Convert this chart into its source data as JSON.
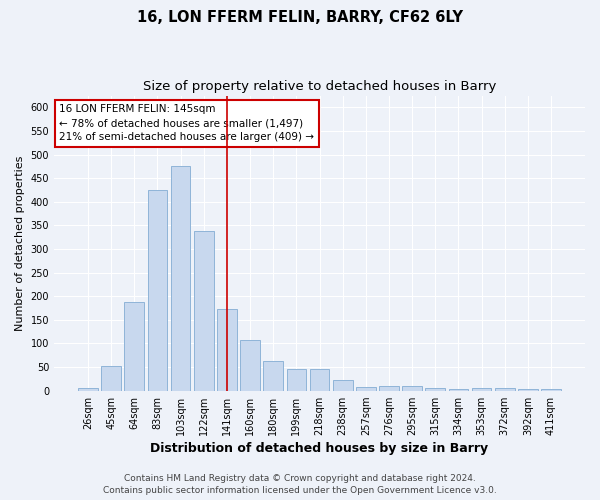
{
  "title": "16, LON FFERM FELIN, BARRY, CF62 6LY",
  "subtitle": "Size of property relative to detached houses in Barry",
  "xlabel": "Distribution of detached houses by size in Barry",
  "ylabel": "Number of detached properties",
  "categories": [
    "26sqm",
    "45sqm",
    "64sqm",
    "83sqm",
    "103sqm",
    "122sqm",
    "141sqm",
    "160sqm",
    "180sqm",
    "199sqm",
    "218sqm",
    "238sqm",
    "257sqm",
    "276sqm",
    "295sqm",
    "315sqm",
    "334sqm",
    "353sqm",
    "372sqm",
    "392sqm",
    "411sqm"
  ],
  "values": [
    5,
    52,
    187,
    425,
    475,
    338,
    173,
    107,
    62,
    47,
    46,
    23,
    8,
    10,
    10,
    5,
    4,
    5,
    5,
    4,
    4
  ],
  "bar_color": "#c8d8ee",
  "bar_edge_color": "#8fb4d8",
  "annotation_title": "16 LON FFERM FELIN: 145sqm",
  "annotation_line1": "← 78% of detached houses are smaller (1,497)",
  "annotation_line2": "21% of semi-detached houses are larger (409) →",
  "annotation_box_color": "#ffffff",
  "annotation_box_edge": "#cc0000",
  "vline_color": "#cc0000",
  "vline_x": 6.0,
  "ylim": [
    0,
    625
  ],
  "yticks": [
    0,
    50,
    100,
    150,
    200,
    250,
    300,
    350,
    400,
    450,
    500,
    550,
    600
  ],
  "footer1": "Contains HM Land Registry data © Crown copyright and database right 2024.",
  "footer2": "Contains public sector information licensed under the Open Government Licence v3.0.",
  "background_color": "#eef2f9",
  "grid_color": "#ffffff",
  "title_fontsize": 10.5,
  "subtitle_fontsize": 9.5,
  "ylabel_fontsize": 8,
  "xlabel_fontsize": 9,
  "tick_fontsize": 7,
  "annotation_fontsize": 7.5,
  "footer_fontsize": 6.5
}
